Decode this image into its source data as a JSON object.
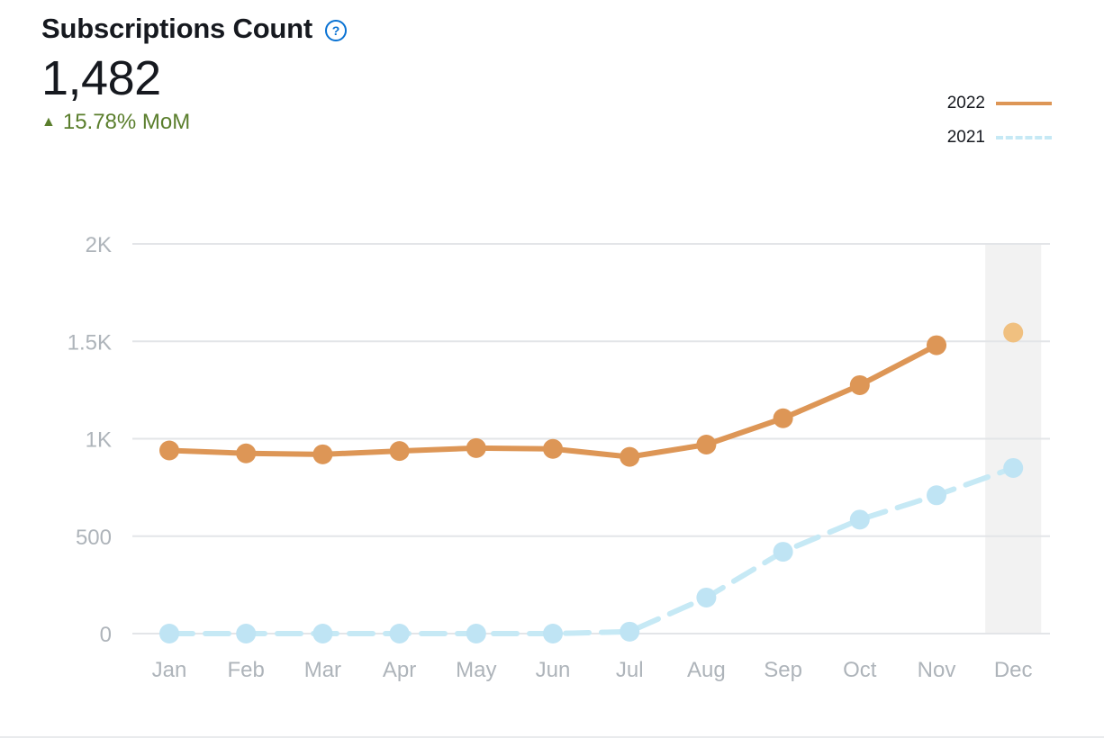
{
  "header": {
    "title": "Subscriptions Count",
    "help_icon": "help-circle-icon",
    "value": "1,482",
    "delta_arrow": "▲",
    "delta_text": "15.78% MoM"
  },
  "colors": {
    "series_2022": "#dd9656",
    "series_2022_highlight": "#f0c080",
    "series_2021": "#c6e9f5",
    "series_2021_point": "#bfe4f4",
    "grid": "#e3e5e8",
    "axis_text": "#aeb4ba",
    "highlight_band": "#f2f2f2",
    "delta": "#5a7e2c"
  },
  "chart_data": {
    "type": "line",
    "title": "Subscriptions Count",
    "categories": [
      "Jan",
      "Feb",
      "Mar",
      "Apr",
      "May",
      "Jun",
      "Jul",
      "Aug",
      "Sep",
      "Oct",
      "Nov",
      "Dec"
    ],
    "yticks": [
      0,
      500,
      1000,
      1500,
      2000
    ],
    "ytick_labels": [
      "0",
      "500",
      "1K",
      "1.5K",
      "2K"
    ],
    "ylim": [
      0,
      2000
    ],
    "grid": true,
    "legend_position": "top-right",
    "highlighted_category": "Dec",
    "series": [
      {
        "name": "2022",
        "style": "solid",
        "values": [
          940,
          925,
          920,
          937,
          952,
          948,
          907,
          970,
          1105,
          1275,
          1480,
          1545
        ]
      },
      {
        "name": "2021",
        "style": "dashed",
        "values": [
          0,
          0,
          0,
          0,
          0,
          0,
          10,
          185,
          420,
          585,
          710,
          850
        ]
      }
    ]
  }
}
